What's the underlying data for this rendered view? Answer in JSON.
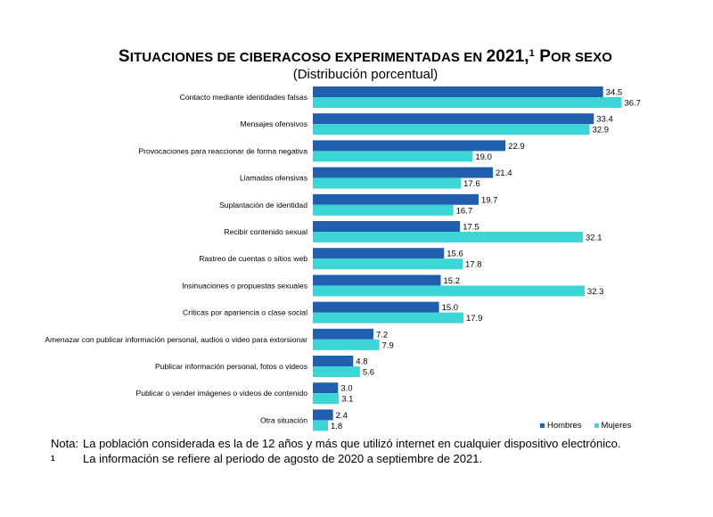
{
  "title": {
    "first_letter": "S",
    "rest": "ITUACIONES DE CIBERACOSO EXPERIMENTADAS EN ",
    "year": "2021,",
    "sup": "1",
    "tail_first": " P",
    "tail_rest": "OR SEXO"
  },
  "subtitle": "(Distribución porcentual)",
  "legend": {
    "hombres": "Hombres",
    "mujeres": "Mujeres"
  },
  "colors": {
    "hombres": "#1f5fae",
    "mujeres": "#3dd6d6"
  },
  "notes": [
    {
      "key": "Nota:",
      "text": "La población considerada es la de 12 años y más que utilizó internet en cualquier dispositivo electrónico."
    },
    {
      "key": "1",
      "text": "La información se refiere al periodo de agosto de 2020 a septiembre de 2021."
    }
  ],
  "chart_data": {
    "type": "bar",
    "orientation": "horizontal",
    "categories": [
      "Contacto mediante identidades falsas",
      "Mensajes ofensivos",
      "Provocaciones para reaccionar de forma negativa",
      "Llamadas ofensivas",
      "Suplantación de identidad",
      "Recibir contenido sexual",
      "Rastreo de cuentas o sitios web",
      "Insinuaciones o propuestas sexuales",
      "Críticas por apariencia o clase social",
      "Amenazar con publicar información personal, audios o video para extorsionar",
      "Publicar información personal, fotos o videos",
      "Publicar o vender imágenes o videos de contenido",
      "Otra situación"
    ],
    "series": [
      {
        "name": "Hombres",
        "values": [
          "34.5",
          "33.4",
          "22.9",
          "21.4",
          "19.7",
          "17.5",
          "15.6",
          "15.2",
          "15.0",
          "7.2",
          "4.8",
          "3.0",
          "2.4"
        ]
      },
      {
        "name": "Mujeres",
        "values": [
          "36.7",
          "32.9",
          "19.0",
          "17.6",
          "16.7",
          "32.1",
          "17.8",
          "32.3",
          "17.9",
          "7.9",
          "5.6",
          "3.1",
          "1.8"
        ]
      }
    ],
    "legend_position": "bottom-right",
    "grid": false
  }
}
